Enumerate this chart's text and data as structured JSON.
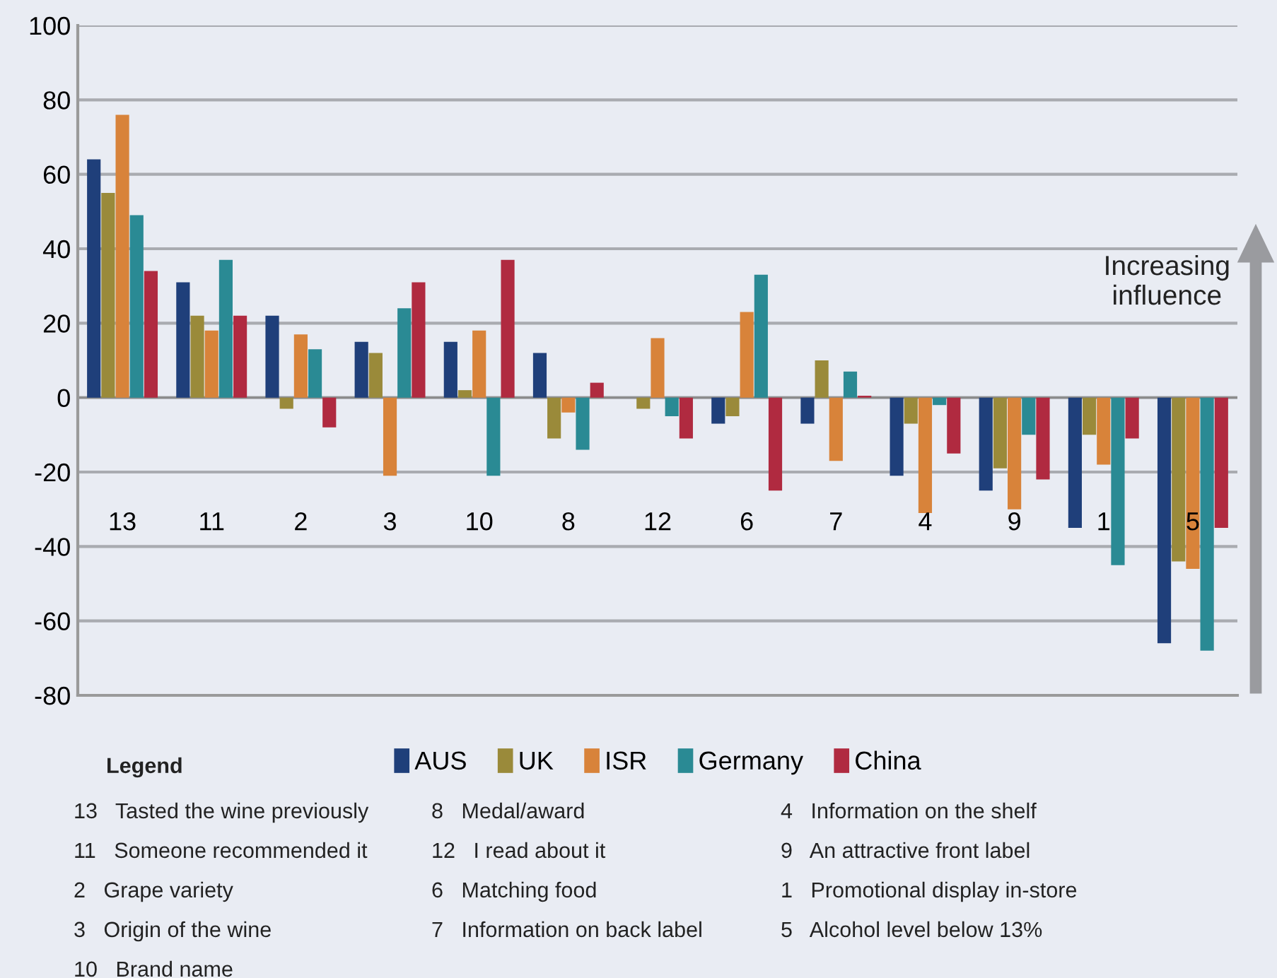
{
  "chart_data": {
    "type": "bar",
    "categories": [
      "13",
      "11",
      "2",
      "3",
      "10",
      "8",
      "12",
      "6",
      "7",
      "4",
      "9",
      "1",
      "5"
    ],
    "series": [
      {
        "name": "AUS",
        "color": "#1f3f7a",
        "values": [
          64,
          31,
          22,
          15,
          15,
          12,
          null,
          -7,
          -7,
          -21,
          -25,
          -35,
          -66
        ]
      },
      {
        "name": "UK",
        "color": "#9a8a3a",
        "values": [
          55,
          22,
          -3,
          12,
          2,
          -11,
          -3,
          -5,
          10,
          -7,
          -19,
          -10,
          -44
        ]
      },
      {
        "name": "ISR",
        "color": "#d8833a",
        "values": [
          76,
          18,
          17,
          -21,
          18,
          -4,
          16,
          23,
          -17,
          -31,
          -30,
          -18,
          -46
        ]
      },
      {
        "name": "Germany",
        "color": "#2a8a94",
        "values": [
          49,
          37,
          13,
          24,
          -21,
          -14,
          -5,
          33,
          7,
          -2,
          -10,
          -45,
          -68
        ]
      },
      {
        "name": "China",
        "color": "#b02a40",
        "values": [
          34,
          22,
          -8,
          31,
          37,
          4,
          -11,
          -25,
          0.5,
          -15,
          -22,
          -11,
          -35
        ]
      }
    ],
    "ylim": [
      -80,
      100
    ],
    "yticks": [
      -80,
      -60,
      -40,
      -20,
      0,
      20,
      40,
      60,
      80,
      100
    ],
    "grid": "y",
    "legend": "bottom",
    "annotations": [
      "Increasing\ninfluence",
      "Legend",
      "13   Tasted the wine previously",
      "11   Someone recommended it",
      "2   Grape variety",
      "3   Origin of the wine",
      "10   Brand name",
      "8   Medal/award",
      "12   I read about it",
      "6   Matching food",
      "7   Information on back label",
      "4   Information on the shelf",
      "9   An attractive front label",
      "1   Promotional display in-store",
      "5   Alcohol level below 13%"
    ]
  }
}
